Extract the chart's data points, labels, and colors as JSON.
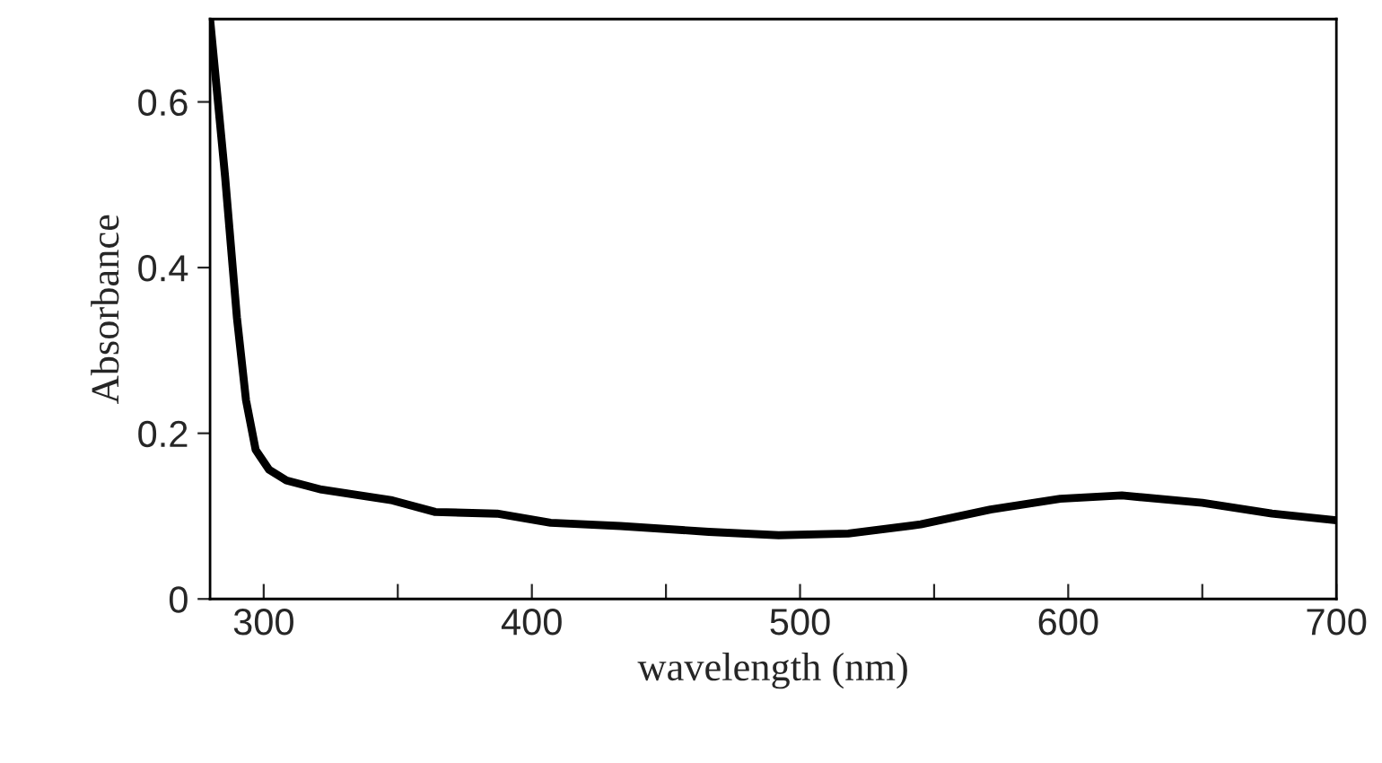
{
  "chart_data": {
    "type": "line",
    "xlabel": "wavelength (nm)",
    "ylabel": "Absorbance",
    "x": [
      280,
      285.6,
      290,
      293.4,
      297,
      302,
      308.5,
      321.6,
      348,
      364,
      387,
      407,
      433,
      466,
      492,
      518,
      545,
      571,
      597,
      620,
      650,
      676,
      700
    ],
    "series": [
      {
        "color": "#000000",
        "values": [
          0.7,
          0.51,
          0.34,
          0.24,
          0.18,
          0.156,
          0.143,
          0.132,
          0.119,
          0.105,
          0.103,
          0.092,
          0.088,
          0.081,
          0.077,
          0.079,
          0.09,
          0.108,
          0.121,
          0.125,
          0.116,
          0.103,
          0.095
        ]
      }
    ],
    "xlim": [
      280,
      700
    ],
    "ylim": [
      0,
      0.7
    ],
    "xticks": [
      300,
      {
        "value": 350,
        "label": null
      },
      400,
      {
        "value": 450,
        "label": null
      },
      500,
      {
        "value": 550,
        "label": null
      },
      600,
      {
        "value": 650,
        "label": null
      },
      700
    ],
    "yticks": [
      0,
      0.2,
      0.4,
      0.6
    ],
    "grid": false,
    "legend": false,
    "marker": "none",
    "line_style": "solid"
  }
}
